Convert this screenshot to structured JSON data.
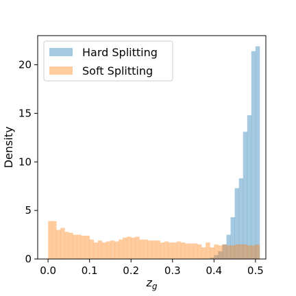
{
  "chart_data": {
    "type": "histogram",
    "xlabel": "z_g",
    "ylabel": "Density",
    "xlim": [
      -0.025,
      0.525
    ],
    "ylim": [
      0,
      23
    ],
    "bin_start": 0.0,
    "bin_width": 0.01,
    "xticks": [
      0.0,
      0.1,
      0.2,
      0.3,
      0.4,
      0.5
    ],
    "xtick_labels": [
      "0.0",
      "0.1",
      "0.2",
      "0.3",
      "0.4",
      "0.5"
    ],
    "yticks": [
      0,
      5,
      10,
      15,
      20
    ],
    "ytick_labels": [
      "0",
      "5",
      "10",
      "15",
      "20"
    ],
    "legend_position": "top-left",
    "grid": false,
    "series": [
      {
        "name": "Hard Splitting",
        "color": "#1f77b4",
        "alpha": 0.4,
        "values": [
          0,
          0,
          0,
          0,
          0,
          0,
          0,
          0,
          0,
          0,
          0,
          0,
          0,
          0,
          0,
          0,
          0,
          0,
          0,
          0,
          0,
          0,
          0,
          0,
          0,
          0,
          0,
          0,
          0,
          0,
          0,
          0,
          0,
          0,
          0,
          0,
          0,
          0,
          0.05,
          0.15,
          0.4,
          0.8,
          1.5,
          2.5,
          4.3,
          7.3,
          8.3,
          13.1,
          14.8,
          21.4,
          21.9
        ]
      },
      {
        "name": "Soft Splitting",
        "color": "#ff7f0e",
        "alpha": 0.4,
        "values": [
          3.9,
          3.9,
          3.0,
          3.2,
          2.8,
          2.7,
          2.5,
          2.5,
          2.4,
          2.4,
          2.0,
          1.7,
          1.9,
          1.7,
          1.8,
          1.9,
          1.8,
          2.0,
          2.2,
          2.3,
          2.2,
          2.3,
          2.0,
          2.0,
          1.9,
          1.9,
          1.9,
          1.7,
          1.8,
          1.7,
          1.7,
          1.8,
          1.7,
          1.6,
          1.6,
          1.6,
          1.5,
          1.2,
          1.7,
          1.2,
          1.5,
          1.4,
          1.5,
          1.4,
          1.4,
          1.5,
          1.5,
          1.5,
          1.4,
          1.4,
          1.5
        ]
      }
    ]
  }
}
